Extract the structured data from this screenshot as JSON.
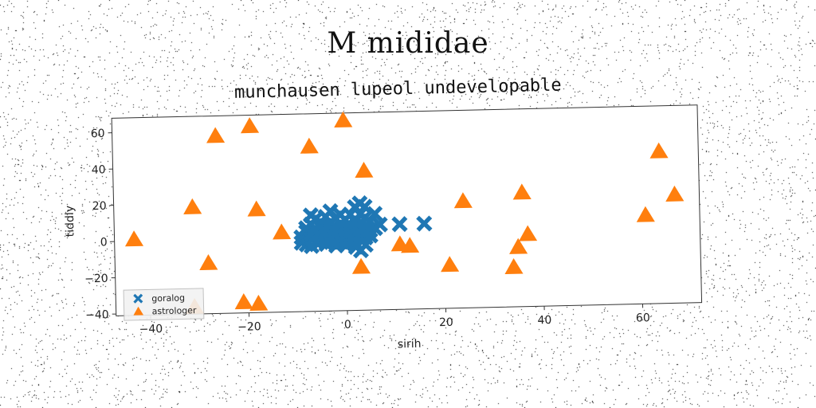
{
  "page": {
    "suptitle": "M mididae"
  },
  "chart_data": {
    "type": "scatter",
    "title": "munchausen lupeol undevelopable",
    "xlabel": "sirih",
    "ylabel": "tiddly",
    "xlim": [
      -47,
      72
    ],
    "ylim": [
      -41,
      68
    ],
    "xticks": [
      -40,
      -20,
      0,
      20,
      40,
      60
    ],
    "yticks": [
      -40,
      -20,
      0,
      20,
      40,
      60
    ],
    "grid": false,
    "legend_position": "lower-left",
    "series": [
      {
        "name": "goralog",
        "marker": "X",
        "color": "#1f77b4",
        "points": [
          [
            -9,
            -3
          ],
          [
            -9,
            0
          ],
          [
            -8,
            -4
          ],
          [
            -8,
            3
          ],
          [
            -8,
            5
          ],
          [
            -7,
            -1
          ],
          [
            -7,
            -5
          ],
          [
            -7,
            2
          ],
          [
            -7,
            7
          ],
          [
            -7,
            12
          ],
          [
            -6,
            -3
          ],
          [
            -6,
            1
          ],
          [
            -6,
            4
          ],
          [
            -6,
            10
          ],
          [
            -5,
            0
          ],
          [
            -5,
            -2
          ],
          [
            -5,
            5
          ],
          [
            -5,
            8
          ],
          [
            -4,
            -1
          ],
          [
            -4,
            -4
          ],
          [
            -4,
            3
          ],
          [
            -4,
            6
          ],
          [
            -4,
            11
          ],
          [
            -3,
            0
          ],
          [
            -3,
            -3
          ],
          [
            -3,
            4
          ],
          [
            -3,
            8
          ],
          [
            -3,
            14
          ],
          [
            -2,
            -2
          ],
          [
            -2,
            2
          ],
          [
            -2,
            5
          ],
          [
            -2,
            -5
          ],
          [
            -2,
            10
          ],
          [
            -1,
            0
          ],
          [
            -1,
            -3
          ],
          [
            -1,
            3
          ],
          [
            -1,
            7
          ],
          [
            -1,
            12
          ],
          [
            0,
            -2
          ],
          [
            0,
            1
          ],
          [
            0,
            4
          ],
          [
            0,
            -5
          ],
          [
            0,
            9
          ],
          [
            1,
            0
          ],
          [
            1,
            -3
          ],
          [
            1,
            3
          ],
          [
            1,
            6
          ],
          [
            1,
            12
          ],
          [
            2,
            -1
          ],
          [
            2,
            -4
          ],
          [
            2,
            2
          ],
          [
            2,
            5
          ],
          [
            2,
            8
          ],
          [
            2,
            -6
          ],
          [
            2,
            16
          ],
          [
            3,
            0
          ],
          [
            3,
            -2
          ],
          [
            3,
            4
          ],
          [
            3,
            7
          ],
          [
            3,
            12
          ],
          [
            3,
            18
          ],
          [
            3,
            -8
          ],
          [
            4,
            -1
          ],
          [
            4,
            2
          ],
          [
            4,
            5
          ],
          [
            4,
            10
          ],
          [
            4,
            -5
          ],
          [
            4,
            16
          ],
          [
            5,
            0
          ],
          [
            5,
            3
          ],
          [
            5,
            8
          ],
          [
            6,
            4
          ],
          [
            6,
            12
          ],
          [
            7,
            6
          ],
          [
            11,
            6
          ],
          [
            16,
            6
          ]
        ]
      },
      {
        "name": "astrologer",
        "marker": "^",
        "color": "#ff7f0e",
        "points": [
          [
            -43,
            1
          ],
          [
            -31,
            18
          ],
          [
            -31,
            -37
          ],
          [
            -28,
            -13
          ],
          [
            -26,
            57
          ],
          [
            -21,
            -35
          ],
          [
            -19,
            62
          ],
          [
            -18,
            16
          ],
          [
            -18,
            -36
          ],
          [
            -13,
            3
          ],
          [
            -7,
            50
          ],
          [
            0,
            64
          ],
          [
            3,
            -17
          ],
          [
            4,
            36
          ],
          [
            11,
            -5
          ],
          [
            13,
            -6
          ],
          [
            21,
            -17
          ],
          [
            24,
            18
          ],
          [
            34,
            -19
          ],
          [
            35,
            -8
          ],
          [
            36,
            22
          ],
          [
            37,
            -1
          ],
          [
            61,
            8
          ],
          [
            64,
            43
          ],
          [
            67,
            19
          ]
        ]
      }
    ]
  }
}
